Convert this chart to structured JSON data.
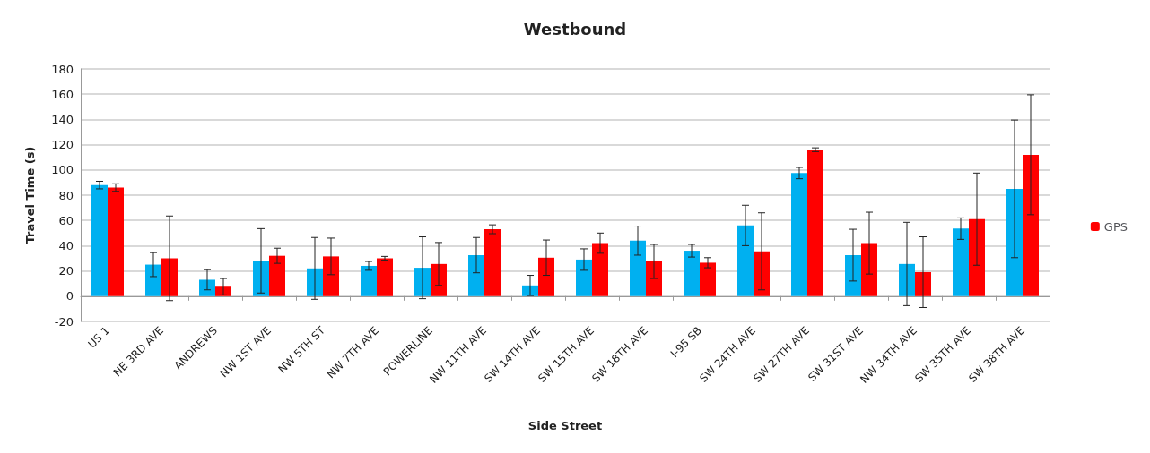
{
  "chart_data": {
    "type": "bar",
    "title": "Westbound",
    "xlabel": "Side Street",
    "ylabel": "Travel Time (s)",
    "categories": [
      "US 1",
      "NE 3RD AVE",
      "ANDREWS",
      "NW 1ST AVE",
      "NW 5TH ST",
      "NW 7TH AVE",
      "POWERLINE",
      "NW 11TH AVE",
      "SW 14TH AVE",
      "SW 15TH AVE",
      "SW 18TH AVE",
      "I-95 SB",
      "SW 24TH AVE",
      "SW 27TH AVE",
      "SW 31ST AVE",
      "NW 34TH AVE",
      "SW 35TH AVE",
      "SW 38TH AVE"
    ],
    "series": [
      {
        "color": "#00b0f0",
        "values": [
          88,
          25,
          13,
          28,
          22,
          24,
          22.5,
          32.5,
          8.5,
          29,
          44,
          36,
          56,
          97.5,
          32.5,
          25.5,
          53.5,
          85
        ],
        "errors": [
          3,
          9.5,
          8,
          25.5,
          24.5,
          3.5,
          24.5,
          14,
          8,
          8.5,
          11.5,
          5,
          16,
          4.5,
          20.5,
          33,
          8.5,
          54.5
        ]
      },
      {
        "name": "GPS",
        "color": "#ff0000",
        "values": [
          86,
          30,
          7.5,
          32,
          31.5,
          30,
          25.5,
          53,
          30.5,
          42,
          27.5,
          26.5,
          35.5,
          116,
          42,
          19,
          61,
          112
        ],
        "errors": [
          3,
          33.5,
          6.5,
          6,
          14.5,
          1.5,
          17,
          3.5,
          14,
          8,
          13.5,
          4,
          30.5,
          1.5,
          24.5,
          28,
          36.5,
          47.5
        ]
      }
    ],
    "ylim": [
      -20,
      180
    ],
    "yticks": [
      -20,
      0,
      20,
      40,
      60,
      80,
      100,
      120,
      140,
      160,
      180
    ],
    "grid": "y",
    "legend": "right"
  }
}
